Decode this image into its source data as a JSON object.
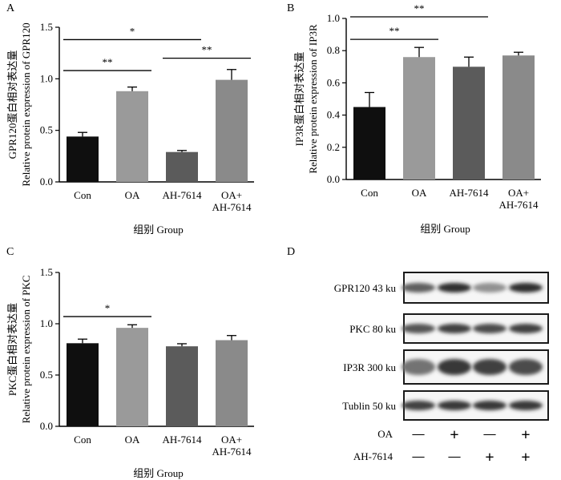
{
  "chart_data": [
    {
      "panel": "A",
      "type": "bar",
      "categories": [
        "Con",
        "OA",
        "AH-7614",
        "OA+\nAH-7614"
      ],
      "values": [
        0.44,
        0.88,
        0.29,
        0.99
      ],
      "errors": [
        0.04,
        0.04,
        0.015,
        0.1
      ],
      "colors": [
        "#0f0f0f",
        "#9a9a9a",
        "#5b5b5b",
        "#8a8a8a"
      ],
      "ylim": [
        0,
        1.5
      ],
      "yticks": [
        "0.0",
        "0.5",
        "1.0",
        "1.5"
      ],
      "ylabel_cn": "GPR120蛋白相对表达量",
      "ylabel_en": "Relative protein expression of GPR120",
      "xlabel": "组别 Group",
      "significance": [
        {
          "from": 0,
          "to": 1,
          "level": 1.08,
          "label": "**"
        },
        {
          "from": 0,
          "to": 2,
          "level": 1.38,
          "label": "*"
        },
        {
          "from": 2,
          "to": 3,
          "level": 1.2,
          "label": "**"
        }
      ]
    },
    {
      "panel": "B",
      "type": "bar",
      "categories": [
        "Con",
        "OA",
        "AH-7614",
        "OA+\nAH-7614"
      ],
      "values": [
        0.45,
        0.76,
        0.7,
        0.77
      ],
      "errors": [
        0.09,
        0.06,
        0.06,
        0.02
      ],
      "colors": [
        "#0f0f0f",
        "#9a9a9a",
        "#5b5b5b",
        "#8a8a8a"
      ],
      "ylim": [
        0,
        1.0
      ],
      "yticks": [
        "0.0",
        "0.2",
        "0.4",
        "0.6",
        "0.8",
        "1.0"
      ],
      "ylabel_cn": "IP3R蛋白相对表达量",
      "ylabel_en": "Relative protein expression of IP3R",
      "xlabel": "组别 Group",
      "significance": [
        {
          "from": 0,
          "to": 1,
          "level": 0.87,
          "label": "**"
        },
        {
          "from": 0,
          "to": 2,
          "level": 1.01,
          "label": "**"
        }
      ]
    },
    {
      "panel": "C",
      "type": "bar",
      "categories": [
        "Con",
        "OA",
        "AH-7614",
        "OA+\nAH-7614"
      ],
      "values": [
        0.81,
        0.96,
        0.78,
        0.84
      ],
      "errors": [
        0.04,
        0.03,
        0.025,
        0.045
      ],
      "colors": [
        "#0f0f0f",
        "#9a9a9a",
        "#5b5b5b",
        "#8a8a8a"
      ],
      "ylim": [
        0,
        1.5
      ],
      "yticks": [
        "0.0",
        "0.5",
        "1.0",
        "1.5"
      ],
      "ylabel_cn": "PKC蛋白相对表达量",
      "ylabel_en": "Relative protein expression of PKC",
      "xlabel": "组别 Group",
      "significance": [
        {
          "from": 0,
          "to": 1,
          "level": 1.07,
          "label": "*"
        }
      ]
    }
  ],
  "panel_letters": [
    "A",
    "B",
    "C",
    "D"
  ],
  "blot": {
    "rows": [
      {
        "label": "GPR120 43 ku",
        "intensities": [
          0.7,
          0.95,
          0.45,
          0.95
        ]
      },
      {
        "label": "PKC 80 ku",
        "intensities": [
          0.75,
          0.85,
          0.8,
          0.85
        ]
      },
      {
        "label": "IP3R 300 ku",
        "intensities": [
          0.6,
          0.9,
          0.85,
          0.8
        ]
      },
      {
        "label": "Tublin 50 ku",
        "intensities": [
          0.85,
          0.9,
          0.9,
          0.9
        ]
      }
    ],
    "treatments": [
      {
        "name": "OA",
        "signs": [
          "—",
          "+",
          "—",
          "+"
        ]
      },
      {
        "name": "AH-7614",
        "signs": [
          "—",
          "—",
          "+",
          "+"
        ]
      }
    ]
  }
}
